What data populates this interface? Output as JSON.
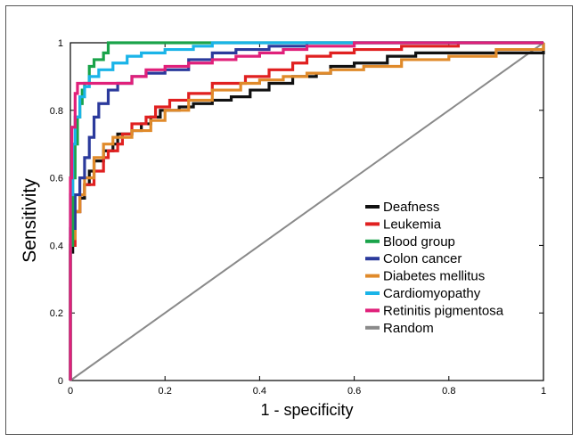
{
  "chart_data": {
    "type": "line",
    "title": "",
    "xlabel": "1 - specificity",
    "ylabel": "Sensitivity",
    "xlim": [
      0,
      1
    ],
    "ylim": [
      0,
      1
    ],
    "x_ticks": [
      "0",
      "0.2",
      "0.4",
      "0.6",
      "0.8",
      "1"
    ],
    "y_ticks": [
      "0",
      "0.2",
      "0.4",
      "0.6",
      "0.8",
      "1"
    ],
    "grid": false,
    "legend_position": "lower-right",
    "series": [
      {
        "name": "Deafness",
        "color": "#111111",
        "points": [
          [
            0,
            0
          ],
          [
            0,
            0.38
          ],
          [
            0.005,
            0.45
          ],
          [
            0.01,
            0.5
          ],
          [
            0.02,
            0.54
          ],
          [
            0.03,
            0.58
          ],
          [
            0.04,
            0.62
          ],
          [
            0.05,
            0.65
          ],
          [
            0.07,
            0.68
          ],
          [
            0.09,
            0.7
          ],
          [
            0.1,
            0.73
          ],
          [
            0.13,
            0.74
          ],
          [
            0.15,
            0.76
          ],
          [
            0.17,
            0.78
          ],
          [
            0.19,
            0.8
          ],
          [
            0.23,
            0.81
          ],
          [
            0.26,
            0.82
          ],
          [
            0.3,
            0.83
          ],
          [
            0.34,
            0.84
          ],
          [
            0.38,
            0.86
          ],
          [
            0.42,
            0.88
          ],
          [
            0.47,
            0.9
          ],
          [
            0.52,
            0.91
          ],
          [
            0.55,
            0.93
          ],
          [
            0.6,
            0.94
          ],
          [
            0.67,
            0.96
          ],
          [
            0.72,
            0.96
          ],
          [
            0.73,
            0.97
          ],
          [
            1,
            1
          ]
        ]
      },
      {
        "name": "Leukemia",
        "color": "#e02020",
        "points": [
          [
            0,
            0
          ],
          [
            0,
            0.4
          ],
          [
            0.01,
            0.5
          ],
          [
            0.02,
            0.55
          ],
          [
            0.03,
            0.58
          ],
          [
            0.05,
            0.62
          ],
          [
            0.07,
            0.66
          ],
          [
            0.08,
            0.68
          ],
          [
            0.1,
            0.7
          ],
          [
            0.11,
            0.73
          ],
          [
            0.13,
            0.76
          ],
          [
            0.16,
            0.78
          ],
          [
            0.18,
            0.81
          ],
          [
            0.21,
            0.83
          ],
          [
            0.25,
            0.85
          ],
          [
            0.3,
            0.88
          ],
          [
            0.37,
            0.9
          ],
          [
            0.42,
            0.92
          ],
          [
            0.47,
            0.94
          ],
          [
            0.5,
            0.96
          ],
          [
            0.55,
            0.97
          ],
          [
            0.6,
            0.98
          ],
          [
            0.7,
            0.99
          ],
          [
            0.82,
            1
          ],
          [
            1,
            1
          ]
        ]
      },
      {
        "name": "Blood group",
        "color": "#1aa34a",
        "points": [
          [
            0,
            0
          ],
          [
            0,
            0.4
          ],
          [
            0.005,
            0.6
          ],
          [
            0.01,
            0.7
          ],
          [
            0.015,
            0.78
          ],
          [
            0.02,
            0.82
          ],
          [
            0.025,
            0.86
          ],
          [
            0.03,
            0.88
          ],
          [
            0.04,
            0.93
          ],
          [
            0.05,
            0.95
          ],
          [
            0.06,
            0.95
          ],
          [
            0.07,
            0.97
          ],
          [
            0.08,
            1
          ],
          [
            0.27,
            1
          ],
          [
            1,
            1
          ]
        ]
      },
      {
        "name": "Colon cancer",
        "color": "#2b3a9c",
        "points": [
          [
            0,
            0
          ],
          [
            0,
            0.45
          ],
          [
            0.01,
            0.55
          ],
          [
            0.02,
            0.6
          ],
          [
            0.03,
            0.66
          ],
          [
            0.04,
            0.72
          ],
          [
            0.05,
            0.78
          ],
          [
            0.06,
            0.82
          ],
          [
            0.08,
            0.86
          ],
          [
            0.1,
            0.88
          ],
          [
            0.13,
            0.9
          ],
          [
            0.16,
            0.91
          ],
          [
            0.2,
            0.92
          ],
          [
            0.25,
            0.95
          ],
          [
            0.3,
            0.97
          ],
          [
            0.35,
            0.98
          ],
          [
            0.42,
            0.99
          ],
          [
            0.5,
            1
          ],
          [
            1,
            1
          ]
        ]
      },
      {
        "name": "Diabetes mellitus",
        "color": "#e08a2a",
        "points": [
          [
            0,
            0
          ],
          [
            0,
            0.42
          ],
          [
            0.01,
            0.5
          ],
          [
            0.02,
            0.55
          ],
          [
            0.03,
            0.6
          ],
          [
            0.05,
            0.66
          ],
          [
            0.07,
            0.7
          ],
          [
            0.09,
            0.72
          ],
          [
            0.13,
            0.74
          ],
          [
            0.17,
            0.77
          ],
          [
            0.2,
            0.8
          ],
          [
            0.25,
            0.83
          ],
          [
            0.3,
            0.86
          ],
          [
            0.36,
            0.88
          ],
          [
            0.4,
            0.89
          ],
          [
            0.45,
            0.9
          ],
          [
            0.5,
            0.91
          ],
          [
            0.55,
            0.92
          ],
          [
            0.62,
            0.93
          ],
          [
            0.7,
            0.95
          ],
          [
            0.8,
            0.96
          ],
          [
            0.9,
            0.98
          ],
          [
            1,
            1
          ]
        ]
      },
      {
        "name": "Cardiomyopathy",
        "color": "#1ab4e8",
        "points": [
          [
            0,
            0
          ],
          [
            0,
            0.55
          ],
          [
            0.005,
            0.7
          ],
          [
            0.01,
            0.78
          ],
          [
            0.02,
            0.84
          ],
          [
            0.03,
            0.87
          ],
          [
            0.04,
            0.9
          ],
          [
            0.06,
            0.92
          ],
          [
            0.09,
            0.94
          ],
          [
            0.12,
            0.96
          ],
          [
            0.15,
            0.97
          ],
          [
            0.2,
            0.98
          ],
          [
            0.26,
            0.99
          ],
          [
            0.3,
            1
          ],
          [
            1,
            1
          ]
        ]
      },
      {
        "name": "Retinitis pigmentosa",
        "color": "#e0207a",
        "points": [
          [
            0,
            0
          ],
          [
            0,
            0.6
          ],
          [
            0.003,
            0.75
          ],
          [
            0.01,
            0.85
          ],
          [
            0.015,
            0.88
          ],
          [
            0.1,
            0.88
          ],
          [
            0.13,
            0.9
          ],
          [
            0.16,
            0.92
          ],
          [
            0.2,
            0.93
          ],
          [
            0.25,
            0.94
          ],
          [
            0.3,
            0.95
          ],
          [
            0.35,
            0.96
          ],
          [
            0.4,
            0.97
          ],
          [
            0.45,
            0.98
          ],
          [
            0.5,
            0.99
          ],
          [
            0.6,
            1
          ],
          [
            1,
            1
          ]
        ]
      },
      {
        "name": "Random",
        "color": "#8a8a8a",
        "points": [
          [
            0,
            0
          ],
          [
            1,
            1
          ]
        ]
      }
    ]
  }
}
